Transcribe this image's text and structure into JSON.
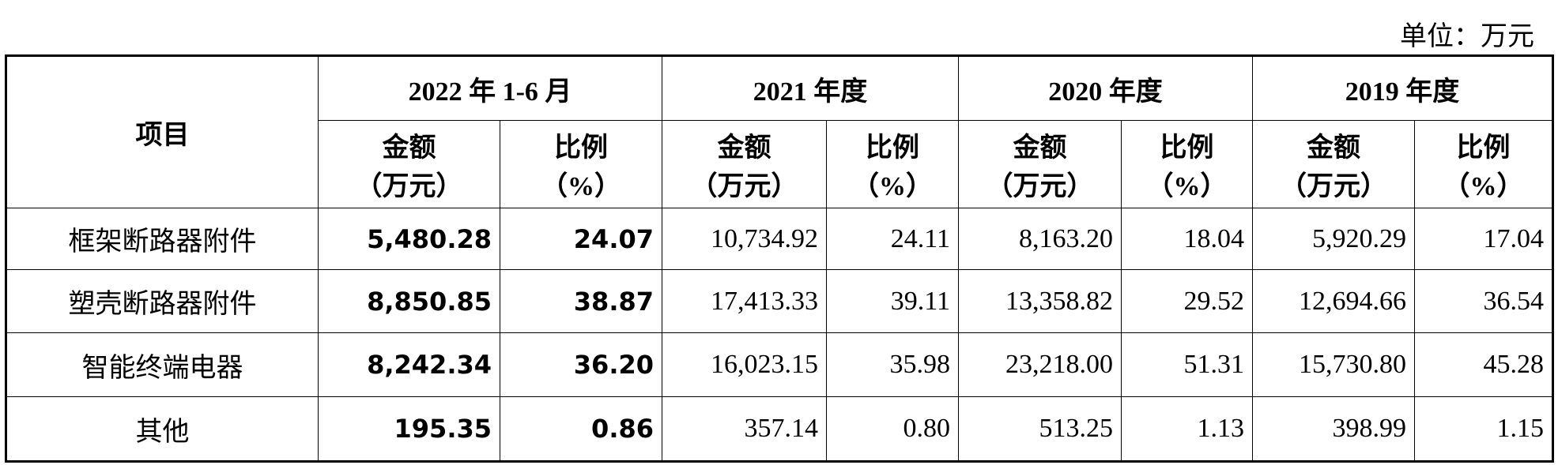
{
  "unit": "单位：万元",
  "table": {
    "header": {
      "item": "项目",
      "periods": [
        "2022 年 1-6 月",
        "2021 年度",
        "2020 年度",
        "2019 年度"
      ],
      "subheaders": [
        [
          "金额",
          "（万元）"
        ],
        [
          "比例",
          "（%）"
        ],
        [
          "金额",
          "（万元）"
        ],
        [
          "比例",
          "（%）"
        ],
        [
          "金额",
          "（万元）"
        ],
        [
          "比例",
          "（%）"
        ],
        [
          "金额",
          "（万元）"
        ],
        [
          "比例",
          "（%）"
        ]
      ]
    },
    "rows": [
      [
        "框架断路器附件",
        "5,480.28",
        "24.07",
        "10,734.92",
        "24.11",
        "8,163.20",
        "18.04",
        "5,920.29",
        "17.04"
      ],
      [
        "塑壳断路器附件",
        "8,850.85",
        "38.87",
        "17,413.33",
        "39.11",
        "13,358.82",
        "29.52",
        "12,694.66",
        "36.54"
      ],
      [
        "智能终端电器",
        "8,242.34",
        "36.20",
        "16,023.15",
        "35.98",
        "23,218.00",
        "51.31",
        "15,730.80",
        "45.28"
      ],
      [
        "其他",
        "195.35",
        "0.86",
        "357.14",
        "0.80",
        "513.25",
        "1.13",
        "398.99",
        "1.15"
      ]
    ]
  }
}
